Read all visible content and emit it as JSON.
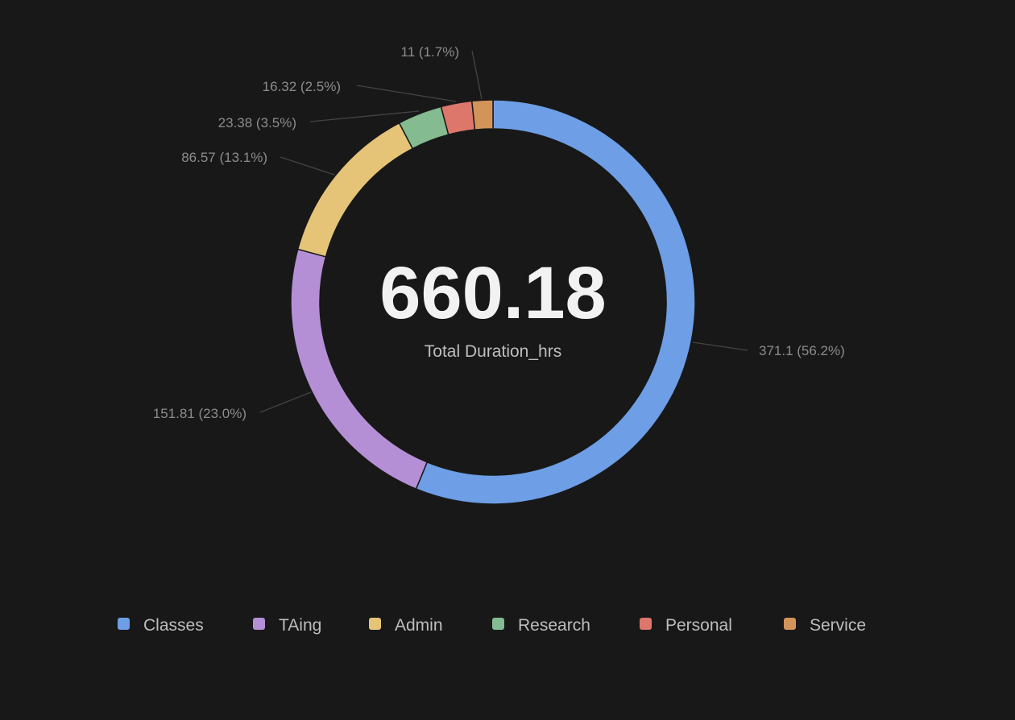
{
  "chart_data": {
    "type": "pie",
    "variant": "donut",
    "center_value": "660.18",
    "center_label": "Total Duration_hrs",
    "legend_position": "bottom",
    "slices": [
      {
        "name": "Classes",
        "value": 371.1,
        "label": "371.1 (56.2%)",
        "color": "#6d9ee6"
      },
      {
        "name": "TAing",
        "value": 151.81,
        "label": "151.81 (23.0%)",
        "color": "#b48fd6"
      },
      {
        "name": "Admin",
        "value": 86.57,
        "label": "86.57 (13.1%)",
        "color": "#e5c478"
      },
      {
        "name": "Research",
        "value": 23.38,
        "label": "23.38 (3.5%)",
        "color": "#84bb91"
      },
      {
        "name": "Personal",
        "value": 16.32,
        "label": "16.32 (2.5%)",
        "color": "#dd766b"
      },
      {
        "name": "Service",
        "value": 11,
        "label": "11 (1.7%)",
        "color": "#d39459"
      }
    ]
  }
}
